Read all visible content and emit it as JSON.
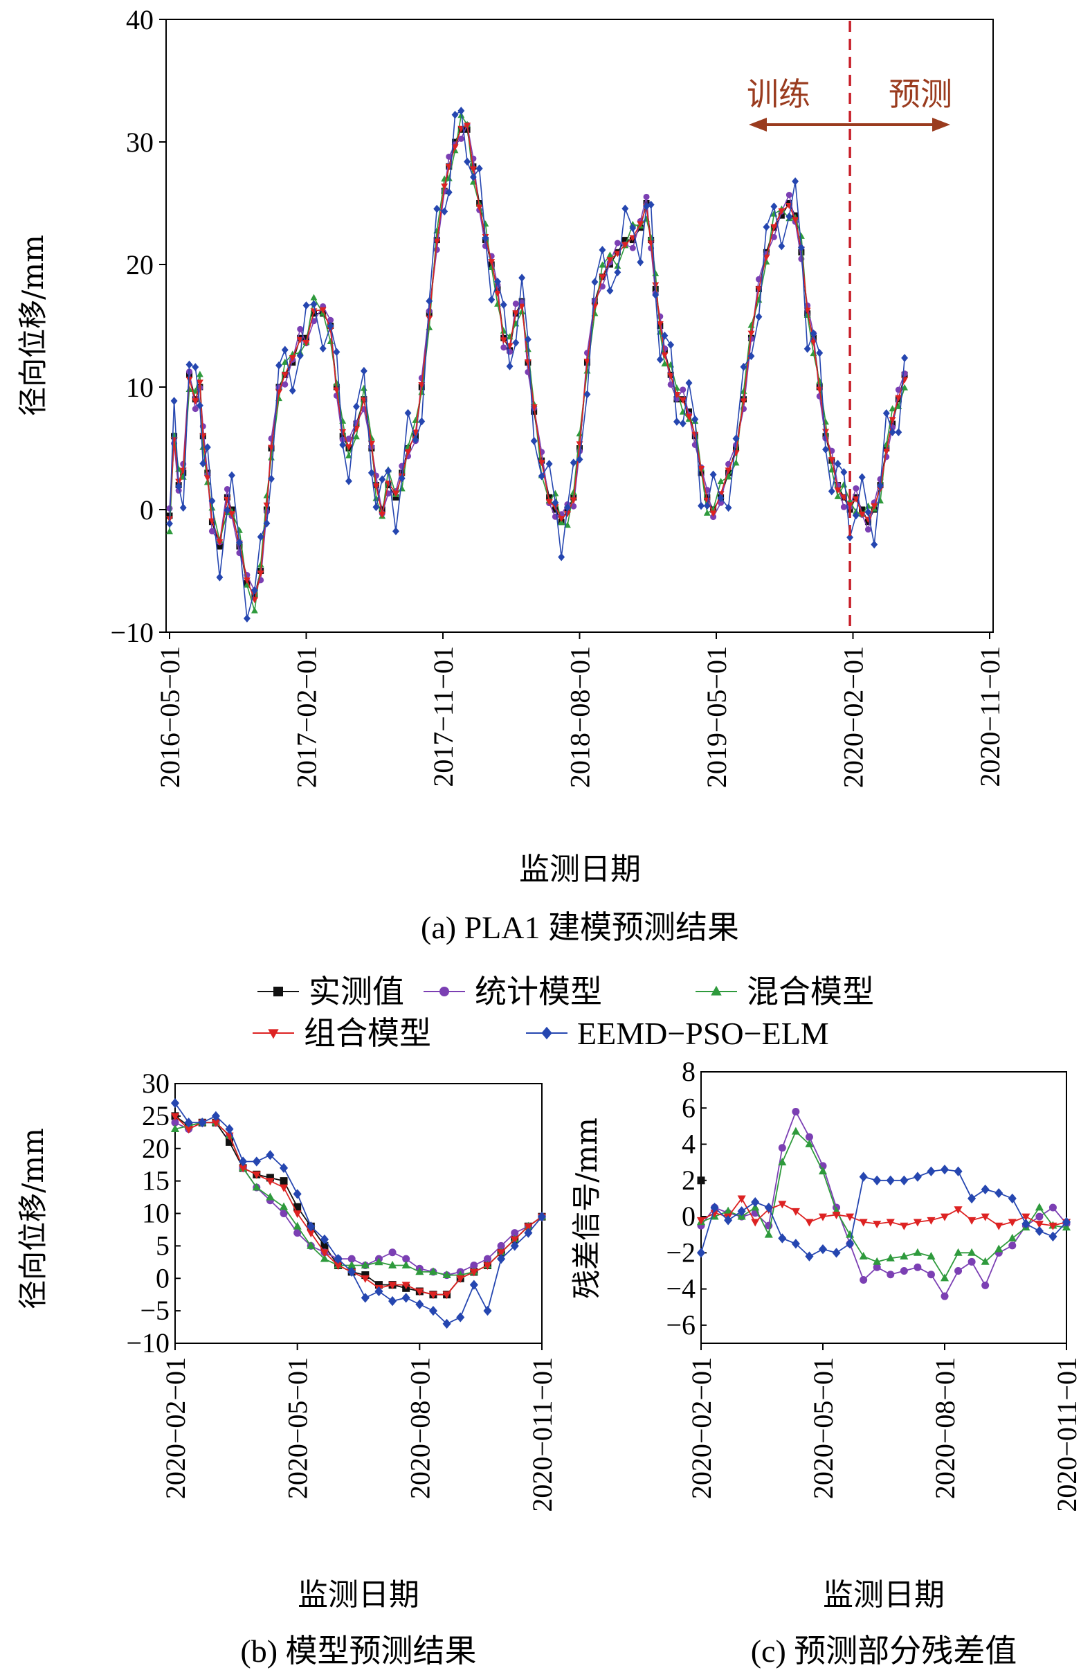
{
  "colors": {
    "measured": "#111111",
    "statistical": "#7b3fb3",
    "hybrid": "#2e9a3c",
    "combined": "#dd2222",
    "eemd": "#2546b0",
    "divider": "#c8202a",
    "arrow": "#9a3b1e"
  },
  "legend": {
    "items": [
      {
        "key": "measured",
        "label": "实测值",
        "marker": "square"
      },
      {
        "key": "statistical",
        "label": "统计模型",
        "marker": "circle"
      },
      {
        "key": "hybrid",
        "label": "混合模型",
        "marker": "triangle-up"
      },
      {
        "key": "combined",
        "label": "组合模型",
        "marker": "triangle-down"
      },
      {
        "key": "eemd",
        "label": "EEMD−PSO−ELM",
        "marker": "diamond"
      }
    ]
  },
  "chart_data": [
    {
      "id": "a",
      "type": "line",
      "caption": "(a) PLA1 建模预测结果",
      "xlabel": "监测日期",
      "ylabel": "径向位移/mm",
      "ylim": [
        -10,
        40
      ],
      "yticks": [
        "−10",
        "0",
        "10",
        "20",
        "30",
        "40"
      ],
      "xticks": [
        "2016−05−01",
        "2017−02−01",
        "2017−11−01",
        "2018−08−01",
        "2019−05−01",
        "2020−02−01",
        "2020−11−01"
      ],
      "xrange_months": [
        0,
        54
      ],
      "divider_month": 44.8,
      "train_label": "训练",
      "predict_label": "预测",
      "anchors": [
        [
          0,
          -0.5
        ],
        [
          0.3,
          6
        ],
        [
          0.6,
          2
        ],
        [
          0.9,
          3
        ],
        [
          1.3,
          11
        ],
        [
          1.7,
          9
        ],
        [
          2.0,
          10
        ],
        [
          2.2,
          6
        ],
        [
          2.5,
          3
        ],
        [
          2.8,
          -1
        ],
        [
          3.3,
          -3
        ],
        [
          3.8,
          1
        ],
        [
          4.1,
          0
        ],
        [
          4.6,
          -3
        ],
        [
          5.1,
          -6
        ],
        [
          5.6,
          -7
        ],
        [
          6.0,
          -5
        ],
        [
          6.4,
          0
        ],
        [
          6.7,
          5
        ],
        [
          7.2,
          10
        ],
        [
          7.6,
          11
        ],
        [
          8.1,
          12
        ],
        [
          8.6,
          14
        ],
        [
          9.0,
          14
        ],
        [
          9.5,
          16
        ],
        [
          10.1,
          16
        ],
        [
          10.6,
          15
        ],
        [
          11.0,
          10
        ],
        [
          11.4,
          6
        ],
        [
          11.8,
          5
        ],
        [
          12.3,
          7
        ],
        [
          12.8,
          9
        ],
        [
          13.3,
          5
        ],
        [
          13.6,
          2
        ],
        [
          14.0,
          0
        ],
        [
          14.4,
          2
        ],
        [
          14.9,
          1
        ],
        [
          15.3,
          3
        ],
        [
          15.7,
          5
        ],
        [
          16.2,
          6
        ],
        [
          16.6,
          10
        ],
        [
          17.1,
          16
        ],
        [
          17.6,
          22
        ],
        [
          18.1,
          26
        ],
        [
          18.4,
          28
        ],
        [
          18.8,
          30
        ],
        [
          19.2,
          31
        ],
        [
          19.6,
          31
        ],
        [
          20.0,
          28
        ],
        [
          20.4,
          25
        ],
        [
          20.8,
          22
        ],
        [
          21.2,
          20
        ],
        [
          21.6,
          18
        ],
        [
          22.0,
          14
        ],
        [
          22.4,
          13
        ],
        [
          22.8,
          16
        ],
        [
          23.2,
          17
        ],
        [
          23.6,
          12
        ],
        [
          24.0,
          8
        ],
        [
          24.5,
          4
        ],
        [
          25.0,
          1
        ],
        [
          25.4,
          0
        ],
        [
          25.8,
          -1
        ],
        [
          26.2,
          0
        ],
        [
          26.6,
          1
        ],
        [
          27.0,
          5
        ],
        [
          27.5,
          12
        ],
        [
          28.0,
          17
        ],
        [
          28.5,
          19
        ],
        [
          29.0,
          20
        ],
        [
          29.5,
          21
        ],
        [
          30.0,
          22
        ],
        [
          30.5,
          22
        ],
        [
          31.0,
          23
        ],
        [
          31.4,
          25
        ],
        [
          31.7,
          22
        ],
        [
          32.0,
          18
        ],
        [
          32.3,
          15
        ],
        [
          32.6,
          13
        ],
        [
          33.0,
          11
        ],
        [
          33.4,
          9
        ],
        [
          33.8,
          9
        ],
        [
          34.2,
          8
        ],
        [
          34.6,
          6
        ],
        [
          35.0,
          3
        ],
        [
          35.4,
          1
        ],
        [
          35.8,
          0
        ],
        [
          36.3,
          1
        ],
        [
          36.8,
          3
        ],
        [
          37.3,
          5
        ],
        [
          37.8,
          9
        ],
        [
          38.3,
          14
        ],
        [
          38.8,
          18
        ],
        [
          39.3,
          21
        ],
        [
          39.8,
          23
        ],
        [
          40.3,
          24
        ],
        [
          40.8,
          25
        ],
        [
          41.2,
          24
        ],
        [
          41.6,
          21
        ],
        [
          42.0,
          16
        ],
        [
          42.4,
          14
        ],
        [
          42.8,
          10
        ],
        [
          43.2,
          6
        ],
        [
          43.6,
          4
        ],
        [
          44.0,
          2
        ],
        [
          44.4,
          1
        ],
        [
          44.8,
          0
        ],
        [
          45.2,
          1
        ],
        [
          45.6,
          0
        ],
        [
          46.0,
          -1
        ],
        [
          46.4,
          0
        ],
        [
          46.8,
          2
        ],
        [
          47.2,
          5
        ],
        [
          47.6,
          7
        ],
        [
          48.0,
          9
        ],
        [
          48.4,
          11
        ]
      ],
      "series": [
        {
          "key": "measured",
          "name": "实测值",
          "offset": 0
        },
        {
          "key": "statistical",
          "name": "统计模型",
          "offset": 0.8
        },
        {
          "key": "hybrid",
          "name": "混合模型",
          "offset": 1.3
        },
        {
          "key": "combined",
          "name": "组合模型",
          "offset": -0.4
        },
        {
          "key": "eemd",
          "name": "EEMD−PSO−ELM",
          "offset": -1.6
        }
      ]
    },
    {
      "id": "b",
      "type": "line",
      "caption": "(b) 模型预测结果",
      "xlabel": "监测日期",
      "ylabel": "径向位移/mm",
      "ylim": [
        -10,
        30
      ],
      "yticks": [
        "−10",
        "−5",
        "0",
        "5",
        "10",
        "15",
        "20",
        "25",
        "30"
      ],
      "xticks": [
        "2020−02−01",
        "2020−05−01",
        "2020−08−01",
        "2020−011−01"
      ],
      "x_index": [
        0,
        1,
        2,
        3,
        4,
        5,
        6,
        7,
        8,
        9,
        10,
        11,
        12,
        13,
        14,
        15,
        16,
        17,
        18,
        19,
        20,
        21,
        22,
        23,
        24,
        25,
        26,
        27
      ],
      "xtick_index": [
        0,
        9,
        18,
        27
      ],
      "series": [
        {
          "key": "measured",
          "name": "实测值",
          "values": [
            25,
            23.5,
            24,
            24,
            21,
            17,
            16,
            15.5,
            15,
            11,
            8,
            5,
            2,
            1,
            0.5,
            -1,
            -1,
            -1.5,
            -2,
            -2.5,
            -2.5,
            0,
            1,
            2,
            4,
            6,
            8,
            9.5
          ]
        },
        {
          "key": "statistical",
          "name": "统计模型",
          "values": [
            24,
            23,
            24,
            24,
            22,
            17,
            14,
            12,
            10,
            7,
            5,
            4,
            3,
            3,
            2,
            3,
            4,
            3,
            1.5,
            1,
            0.5,
            1,
            2,
            3,
            5,
            7,
            8,
            9.5
          ]
        },
        {
          "key": "hybrid",
          "name": "混合模型",
          "values": [
            23,
            23.5,
            24,
            24,
            22,
            17,
            14,
            12.5,
            11,
            8,
            5,
            3,
            2,
            2,
            2,
            2.5,
            2,
            2,
            1,
            1,
            0.5,
            0.5,
            1,
            2,
            4,
            6,
            8,
            9.5
          ]
        },
        {
          "key": "combined",
          "name": "组合模型",
          "values": [
            25,
            23,
            24,
            24,
            22,
            17,
            16,
            15,
            14,
            10,
            7,
            4,
            2,
            1,
            0,
            -1.5,
            -1,
            -1,
            -2,
            -2.5,
            -2.5,
            0,
            1,
            2,
            4,
            6,
            8,
            9.5
          ]
        },
        {
          "key": "eemd",
          "name": "EEMD−PSO−ELM",
          "values": [
            27,
            24,
            24,
            25,
            23,
            18,
            18,
            19,
            17,
            13,
            8,
            6,
            3,
            1,
            -3,
            -2,
            -3.5,
            -3,
            -4,
            -5,
            -7,
            -6,
            -1,
            -5,
            3,
            5,
            7,
            9.5
          ]
        }
      ]
    },
    {
      "id": "c",
      "type": "line",
      "caption": "(c) 预测部分残差值",
      "xlabel": "监测日期",
      "ylabel": "残差信号/mm",
      "ylim": [
        -7,
        8
      ],
      "yticks": [
        "−6",
        "−4",
        "−2",
        "0",
        "2",
        "4",
        "6",
        "8"
      ],
      "ytick_values": [
        -6,
        -4,
        -2,
        0,
        2,
        4,
        6,
        8
      ],
      "xticks": [
        "2020−02−01",
        "2020−05−01",
        "2020−08−01",
        "2020−011−01"
      ],
      "x_index": [
        0,
        1,
        2,
        3,
        4,
        5,
        6,
        7,
        8,
        9,
        10,
        11,
        12,
        13,
        14,
        15,
        16,
        17,
        18,
        19,
        20,
        21,
        22,
        23,
        24,
        25,
        26,
        27
      ],
      "xtick_index": [
        0,
        9,
        18,
        27
      ],
      "series": [
        {
          "key": "measured",
          "name": "实测值",
          "values": [
            2,
            null,
            null,
            null,
            null,
            null,
            null,
            null,
            null,
            null,
            null,
            null,
            null,
            null,
            null,
            null,
            null,
            null,
            null,
            null,
            null,
            null,
            null,
            null,
            null,
            null,
            null,
            null
          ]
        },
        {
          "key": "statistical",
          "name": "统计模型",
          "values": [
            -0.5,
            0.5,
            0.2,
            0,
            0.2,
            -0.5,
            3.8,
            5.8,
            4.4,
            2.8,
            0.5,
            -1.5,
            -3.5,
            -2.8,
            -3.2,
            -3.0,
            -2.8,
            -3.2,
            -4.4,
            -3.0,
            -2.5,
            -3.8,
            -2.0,
            -1.6,
            -0.5,
            0,
            0.5,
            -0.4
          ]
        },
        {
          "key": "hybrid",
          "name": "混合模型",
          "values": [
            -0.3,
            0,
            0.3,
            0,
            0.5,
            -1.0,
            3.0,
            4.7,
            4.0,
            2.5,
            0.3,
            -1.0,
            -2.2,
            -2.5,
            -2.3,
            -2.2,
            -2.0,
            -2.2,
            -3.4,
            -2.0,
            -2.0,
            -2.5,
            -1.8,
            -1.2,
            -0.6,
            0.5,
            -0.5,
            -0.6
          ]
        },
        {
          "key": "combined",
          "name": "组合模型",
          "values": [
            -0.2,
            0.2,
            0,
            1.0,
            -0.3,
            0.4,
            0.7,
            0.3,
            -0.3,
            0,
            0.1,
            0,
            -0.3,
            -0.4,
            -0.3,
            -0.5,
            -0.3,
            -0.2,
            0,
            0.4,
            -0.2,
            0,
            -0.5,
            -0.3,
            0,
            -0.4,
            -0.5,
            -0.3
          ]
        },
        {
          "key": "eemd",
          "name": "EEMD−PSO−ELM",
          "values": [
            -2.0,
            0.5,
            -0.2,
            0.3,
            0.8,
            0.5,
            -1.2,
            -1.5,
            -2.2,
            -1.8,
            -2.0,
            -1.5,
            2.2,
            2.0,
            2.0,
            2.0,
            2.2,
            2.5,
            2.6,
            2.5,
            1.0,
            1.5,
            1.3,
            1.0,
            -0.4,
            -0.8,
            -1.1,
            -0.3
          ]
        }
      ]
    }
  ]
}
